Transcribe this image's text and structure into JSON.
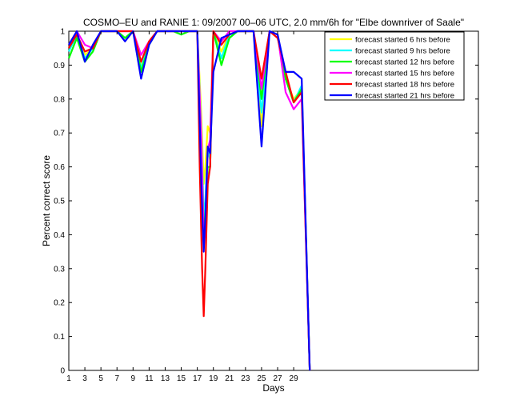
{
  "chart_data": {
    "type": "line",
    "title": "COSMO–EU and RANIE 1: 09/2007 00–06 UTC, 2.0 mm/6h for \"Elbe downriver of Saale\"",
    "xlabel": "Days",
    "ylabel": "Percent correct score",
    "xlim": [
      1,
      52
    ],
    "ylim": [
      0,
      1
    ],
    "x_ticks": [
      1,
      3,
      5,
      7,
      9,
      11,
      13,
      15,
      17,
      19,
      21,
      23,
      25,
      27,
      29
    ],
    "y_ticks": [
      "0",
      "0.1",
      "0.2",
      "0.3",
      "0.4",
      "0.5",
      "0.6",
      "0.7",
      "0.8",
      "0.9",
      "1"
    ],
    "legend_position": "top-right",
    "grid": false,
    "series": [
      {
        "name": "forecast started 6 hrs before",
        "color": "#ffff00",
        "points": [
          [
            1,
            0.95
          ],
          [
            2,
            0.99
          ],
          [
            3,
            0.93
          ],
          [
            4,
            0.95
          ],
          [
            5,
            1.0
          ],
          [
            6,
            1.0
          ],
          [
            7,
            1.0
          ],
          [
            8,
            0.98
          ],
          [
            9,
            1.0
          ],
          [
            10,
            0.9
          ],
          [
            11,
            0.97
          ],
          [
            12,
            1.0
          ],
          [
            13,
            1.0
          ],
          [
            14,
            1.0
          ],
          [
            15,
            1.0
          ],
          [
            16,
            1.0
          ],
          [
            17,
            1.0
          ],
          [
            17.5,
            0.75
          ],
          [
            17.8,
            0.55
          ],
          [
            18,
            0.6
          ],
          [
            18.3,
            0.72
          ],
          [
            18.6,
            0.7
          ],
          [
            19,
            1.0
          ],
          [
            20,
            0.94
          ],
          [
            21,
            0.99
          ],
          [
            22,
            1.0
          ],
          [
            23,
            1.0
          ],
          [
            24,
            1.0
          ],
          [
            25,
            0.72
          ],
          [
            26,
            1.0
          ],
          [
            27,
            0.99
          ],
          [
            28,
            0.86
          ],
          [
            29,
            0.8
          ],
          [
            30,
            0.83
          ],
          [
            31,
            0.0
          ]
        ]
      },
      {
        "name": "forecast started 9 hrs before",
        "color": "#00ffff",
        "points": [
          [
            1,
            0.94
          ],
          [
            2,
            0.99
          ],
          [
            3,
            0.92
          ],
          [
            4,
            0.95
          ],
          [
            5,
            1.0
          ],
          [
            6,
            1.0
          ],
          [
            7,
            1.0
          ],
          [
            8,
            0.98
          ],
          [
            9,
            1.0
          ],
          [
            10,
            0.89
          ],
          [
            11,
            0.97
          ],
          [
            12,
            1.0
          ],
          [
            13,
            1.0
          ],
          [
            14,
            1.0
          ],
          [
            15,
            1.0
          ],
          [
            16,
            1.0
          ],
          [
            17,
            1.0
          ],
          [
            17.5,
            0.7
          ],
          [
            17.8,
            0.45
          ],
          [
            18,
            0.5
          ],
          [
            18.3,
            0.65
          ],
          [
            18.6,
            0.62
          ],
          [
            19,
            1.0
          ],
          [
            20,
            0.92
          ],
          [
            21,
            0.99
          ],
          [
            22,
            1.0
          ],
          [
            23,
            1.0
          ],
          [
            24,
            1.0
          ],
          [
            25,
            0.76
          ],
          [
            26,
            1.0
          ],
          [
            27,
            0.99
          ],
          [
            28,
            0.86
          ],
          [
            29,
            0.79
          ],
          [
            30,
            0.84
          ],
          [
            31,
            0.0
          ]
        ]
      },
      {
        "name": "forecast started 12 hrs before",
        "color": "#00ff00",
        "points": [
          [
            1,
            0.92
          ],
          [
            2,
            0.98
          ],
          [
            3,
            0.91
          ],
          [
            4,
            0.94
          ],
          [
            5,
            1.0
          ],
          [
            6,
            1.0
          ],
          [
            7,
            1.0
          ],
          [
            8,
            0.98
          ],
          [
            9,
            1.0
          ],
          [
            10,
            0.88
          ],
          [
            11,
            0.96
          ],
          [
            12,
            1.0
          ],
          [
            13,
            1.0
          ],
          [
            14,
            1.0
          ],
          [
            15,
            0.99
          ],
          [
            16,
            1.0
          ],
          [
            17,
            1.0
          ],
          [
            17.5,
            0.65
          ],
          [
            17.8,
            0.42
          ],
          [
            18,
            0.45
          ],
          [
            18.3,
            0.6
          ],
          [
            18.6,
            0.6
          ],
          [
            19,
            1.0
          ],
          [
            20,
            0.9
          ],
          [
            21,
            0.98
          ],
          [
            22,
            1.0
          ],
          [
            23,
            1.0
          ],
          [
            24,
            1.0
          ],
          [
            25,
            0.8
          ],
          [
            26,
            1.0
          ],
          [
            27,
            0.99
          ],
          [
            28,
            0.86
          ],
          [
            29,
            0.79
          ],
          [
            30,
            0.83
          ],
          [
            31,
            0.0
          ]
        ]
      },
      {
        "name": "forecast started 15 hrs before",
        "color": "#ff00ff",
        "points": [
          [
            1,
            0.96
          ],
          [
            2,
            1.0
          ],
          [
            3,
            0.96
          ],
          [
            4,
            0.95
          ],
          [
            5,
            1.0
          ],
          [
            6,
            1.0
          ],
          [
            7,
            1.0
          ],
          [
            8,
            1.0
          ],
          [
            9,
            1.0
          ],
          [
            10,
            0.93
          ],
          [
            11,
            0.97
          ],
          [
            12,
            1.0
          ],
          [
            13,
            1.0
          ],
          [
            14,
            1.0
          ],
          [
            15,
            1.0
          ],
          [
            16,
            1.0
          ],
          [
            17,
            1.0
          ],
          [
            17.5,
            0.68
          ],
          [
            17.8,
            0.38
          ],
          [
            18,
            0.4
          ],
          [
            18.3,
            0.65
          ],
          [
            18.6,
            0.68
          ],
          [
            19,
            1.0
          ],
          [
            20,
            0.97
          ],
          [
            21,
            1.0
          ],
          [
            22,
            1.0
          ],
          [
            23,
            1.0
          ],
          [
            24,
            1.0
          ],
          [
            25,
            0.83
          ],
          [
            26,
            1.0
          ],
          [
            27,
            0.99
          ],
          [
            28,
            0.82
          ],
          [
            29,
            0.77
          ],
          [
            30,
            0.8
          ],
          [
            31,
            0.0
          ]
        ]
      },
      {
        "name": "forecast started 18 hrs before",
        "color": "#ff0000",
        "points": [
          [
            1,
            0.95
          ],
          [
            2,
            0.99
          ],
          [
            3,
            0.94
          ],
          [
            4,
            0.95
          ],
          [
            5,
            1.0
          ],
          [
            6,
            1.0
          ],
          [
            7,
            1.0
          ],
          [
            8,
            1.0
          ],
          [
            9,
            1.0
          ],
          [
            10,
            0.91
          ],
          [
            11,
            0.97
          ],
          [
            12,
            1.0
          ],
          [
            13,
            1.0
          ],
          [
            14,
            1.0
          ],
          [
            15,
            1.0
          ],
          [
            16,
            1.0
          ],
          [
            17,
            1.0
          ],
          [
            17.3,
            0.6
          ],
          [
            17.6,
            0.3
          ],
          [
            17.8,
            0.16
          ],
          [
            18,
            0.3
          ],
          [
            18.3,
            0.55
          ],
          [
            18.6,
            0.6
          ],
          [
            19,
            1.0
          ],
          [
            20,
            0.96
          ],
          [
            21,
            0.99
          ],
          [
            22,
            1.0
          ],
          [
            23,
            1.0
          ],
          [
            24,
            1.0
          ],
          [
            25,
            0.86
          ],
          [
            26,
            1.0
          ],
          [
            27,
            0.98
          ],
          [
            28,
            0.88
          ],
          [
            29,
            0.79
          ],
          [
            30,
            0.82
          ],
          [
            31,
            0.0
          ]
        ]
      },
      {
        "name": "forecast started 21 hrs before",
        "color": "#0000ff",
        "points": [
          [
            1,
            0.96
          ],
          [
            2,
            1.0
          ],
          [
            3,
            0.91
          ],
          [
            4,
            0.96
          ],
          [
            5,
            1.0
          ],
          [
            6,
            1.0
          ],
          [
            7,
            1.0
          ],
          [
            8,
            0.97
          ],
          [
            9,
            1.0
          ],
          [
            10,
            0.86
          ],
          [
            11,
            0.96
          ],
          [
            12,
            1.0
          ],
          [
            13,
            1.0
          ],
          [
            14,
            1.0
          ],
          [
            15,
            1.0
          ],
          [
            16,
            1.0
          ],
          [
            17,
            1.0
          ],
          [
            17.5,
            0.55
          ],
          [
            17.8,
            0.35
          ],
          [
            18,
            0.45
          ],
          [
            18.3,
            0.66
          ],
          [
            18.6,
            0.64
          ],
          [
            19,
            0.88
          ],
          [
            20,
            0.98
          ],
          [
            21,
            0.99
          ],
          [
            22,
            1.0
          ],
          [
            23,
            1.0
          ],
          [
            24,
            1.0
          ],
          [
            25,
            0.66
          ],
          [
            26,
            1.0
          ],
          [
            27,
            0.99
          ],
          [
            28,
            0.88
          ],
          [
            29,
            0.88
          ],
          [
            30,
            0.86
          ],
          [
            31,
            0.0
          ]
        ]
      }
    ]
  }
}
